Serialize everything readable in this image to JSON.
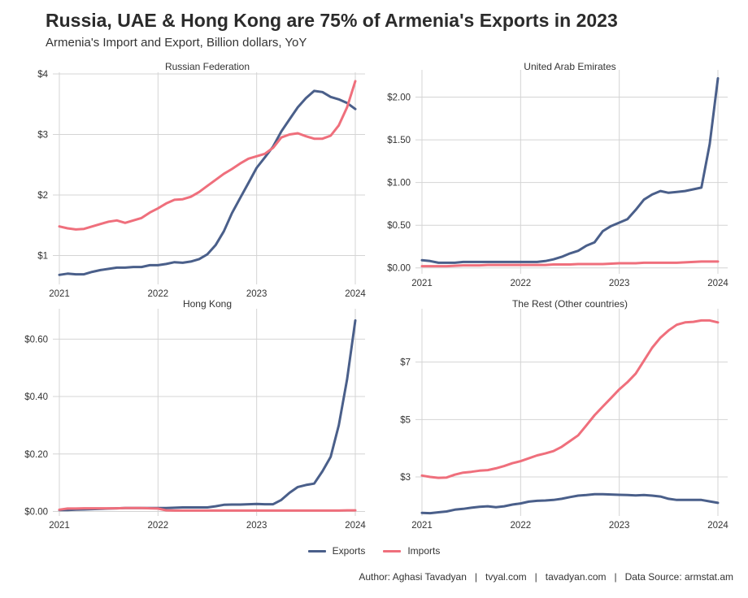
{
  "title": "Russia, UAE & Hong Kong are 75% of Armenia's Exports in 2023",
  "subtitle": "Armenia's Import and Export, Billion dollars, YoY",
  "caption": "Author: Aghasi Tavadyan   |   tvyal.com   |   tavadyan.com   |   Data Source: armstat.am",
  "colors": {
    "exports": "#4a5f8a",
    "imports": "#ef6f7c",
    "grid": "#d4d4d4"
  },
  "legend": [
    {
      "key": "exports",
      "label": "Exports"
    },
    {
      "key": "imports",
      "label": "Imports"
    }
  ],
  "chart_data": [
    {
      "type": "line",
      "title": "Russian Federation",
      "x_ticks": [
        2021,
        2022,
        2023,
        2024
      ],
      "xlim": [
        2021,
        2024
      ],
      "ylim": [
        0.55,
        4.0
      ],
      "y_ticks": [
        1,
        2,
        3,
        4
      ],
      "y_tick_labels": [
        "$1",
        "$2",
        "$3",
        "$4"
      ],
      "grid": true,
      "series": [
        {
          "name": "Exports",
          "x": [
            2021.0,
            2021.083,
            2021.167,
            2021.25,
            2021.333,
            2021.417,
            2021.5,
            2021.583,
            2021.667,
            2021.75,
            2021.833,
            2021.917,
            2022.0,
            2022.083,
            2022.167,
            2022.25,
            2022.333,
            2022.417,
            2022.5,
            2022.583,
            2022.667,
            2022.75,
            2022.833,
            2022.917,
            2023.0,
            2023.083,
            2023.167,
            2023.25,
            2023.333,
            2023.417,
            2023.5,
            2023.583,
            2023.667,
            2023.75,
            2023.833,
            2023.917,
            2024.0
          ],
          "y": [
            0.68,
            0.7,
            0.69,
            0.69,
            0.73,
            0.76,
            0.78,
            0.8,
            0.8,
            0.81,
            0.81,
            0.84,
            0.84,
            0.86,
            0.89,
            0.88,
            0.9,
            0.94,
            1.02,
            1.17,
            1.4,
            1.7,
            1.95,
            2.2,
            2.45,
            2.62,
            2.8,
            3.05,
            3.25,
            3.45,
            3.6,
            3.72,
            3.7,
            3.62,
            3.58,
            3.52,
            3.42
          ]
        },
        {
          "name": "Imports",
          "x": [
            2021.0,
            2021.083,
            2021.167,
            2021.25,
            2021.333,
            2021.417,
            2021.5,
            2021.583,
            2021.667,
            2021.75,
            2021.833,
            2021.917,
            2022.0,
            2022.083,
            2022.167,
            2022.25,
            2022.333,
            2022.417,
            2022.5,
            2022.583,
            2022.667,
            2022.75,
            2022.833,
            2022.917,
            2023.0,
            2023.083,
            2023.167,
            2023.25,
            2023.333,
            2023.417,
            2023.5,
            2023.583,
            2023.667,
            2023.75,
            2023.833,
            2023.917,
            2024.0
          ],
          "y": [
            1.48,
            1.45,
            1.43,
            1.44,
            1.48,
            1.52,
            1.56,
            1.58,
            1.54,
            1.58,
            1.62,
            1.71,
            1.78,
            1.86,
            1.92,
            1.93,
            1.97,
            2.05,
            2.15,
            2.25,
            2.35,
            2.43,
            2.52,
            2.6,
            2.64,
            2.68,
            2.78,
            2.95,
            3.0,
            3.02,
            2.97,
            2.93,
            2.93,
            2.98,
            3.15,
            3.45,
            3.88
          ]
        }
      ]
    },
    {
      "type": "line",
      "title": "United Arab Emirates",
      "x_ticks": [
        2021,
        2022,
        2023,
        2024
      ],
      "xlim": [
        2021,
        2024
      ],
      "ylim": [
        -0.05,
        2.3
      ],
      "y_ticks": [
        0,
        0.5,
        1.0,
        1.5,
        2.0
      ],
      "y_tick_labels": [
        "$0.00",
        "$0.50",
        "$1.00",
        "$1.50",
        "$2.00"
      ],
      "grid": true,
      "series": [
        {
          "name": "Exports",
          "x": [
            2021.0,
            2021.083,
            2021.167,
            2021.25,
            2021.333,
            2021.417,
            2021.5,
            2021.583,
            2021.667,
            2021.75,
            2021.833,
            2021.917,
            2022.0,
            2022.083,
            2022.167,
            2022.25,
            2022.333,
            2022.417,
            2022.5,
            2022.583,
            2022.667,
            2022.75,
            2022.833,
            2022.917,
            2023.0,
            2023.083,
            2023.167,
            2023.25,
            2023.333,
            2023.417,
            2023.5,
            2023.583,
            2023.667,
            2023.75,
            2023.833,
            2023.917,
            2024.0
          ],
          "y": [
            0.09,
            0.08,
            0.06,
            0.06,
            0.06,
            0.07,
            0.07,
            0.07,
            0.07,
            0.07,
            0.07,
            0.07,
            0.07,
            0.07,
            0.07,
            0.08,
            0.1,
            0.13,
            0.17,
            0.2,
            0.26,
            0.3,
            0.43,
            0.49,
            0.53,
            0.57,
            0.68,
            0.8,
            0.86,
            0.9,
            0.88,
            0.89,
            0.9,
            0.92,
            0.94,
            1.45,
            2.22
          ]
        },
        {
          "name": "Imports",
          "x": [
            2021.0,
            2021.083,
            2021.167,
            2021.25,
            2021.333,
            2021.417,
            2021.5,
            2021.583,
            2021.667,
            2021.75,
            2021.833,
            2021.917,
            2022.0,
            2022.083,
            2022.167,
            2022.25,
            2022.333,
            2022.417,
            2022.5,
            2022.583,
            2022.667,
            2022.75,
            2022.833,
            2022.917,
            2023.0,
            2023.083,
            2023.167,
            2023.25,
            2023.333,
            2023.417,
            2023.5,
            2023.583,
            2023.667,
            2023.75,
            2023.833,
            2023.917,
            2024.0
          ],
          "y": [
            0.02,
            0.02,
            0.02,
            0.02,
            0.025,
            0.03,
            0.03,
            0.03,
            0.035,
            0.035,
            0.035,
            0.035,
            0.035,
            0.035,
            0.035,
            0.035,
            0.04,
            0.04,
            0.04,
            0.045,
            0.045,
            0.045,
            0.045,
            0.05,
            0.055,
            0.055,
            0.055,
            0.06,
            0.06,
            0.06,
            0.06,
            0.06,
            0.065,
            0.07,
            0.075,
            0.075,
            0.075
          ]
        }
      ]
    },
    {
      "type": "line",
      "title": "Hong Kong",
      "x_ticks": [
        2021,
        2022,
        2023,
        2024
      ],
      "xlim": [
        2021,
        2024
      ],
      "ylim": [
        -0.01,
        0.7
      ],
      "y_ticks": [
        0,
        0.2,
        0.4,
        0.6
      ],
      "y_tick_labels": [
        "$0.00",
        "$0.20",
        "$0.40",
        "$0.60"
      ],
      "grid": true,
      "series": [
        {
          "name": "Exports",
          "x": [
            2021.0,
            2021.083,
            2021.167,
            2021.25,
            2021.333,
            2021.417,
            2021.5,
            2021.583,
            2021.667,
            2021.75,
            2021.833,
            2021.917,
            2022.0,
            2022.083,
            2022.167,
            2022.25,
            2022.333,
            2022.417,
            2022.5,
            2022.583,
            2022.667,
            2022.75,
            2022.833,
            2022.917,
            2023.0,
            2023.083,
            2023.167,
            2023.25,
            2023.333,
            2023.417,
            2023.5,
            2023.583,
            2023.667,
            2023.75,
            2023.833,
            2023.917,
            2024.0
          ],
          "y": [
            0.005,
            0.005,
            0.006,
            0.007,
            0.008,
            0.009,
            0.01,
            0.011,
            0.012,
            0.012,
            0.012,
            0.012,
            0.012,
            0.012,
            0.013,
            0.014,
            0.014,
            0.014,
            0.014,
            0.018,
            0.023,
            0.024,
            0.024,
            0.025,
            0.026,
            0.025,
            0.025,
            0.04,
            0.065,
            0.085,
            0.092,
            0.097,
            0.14,
            0.19,
            0.3,
            0.46,
            0.665
          ]
        },
        {
          "name": "Imports",
          "x": [
            2021.0,
            2021.083,
            2021.167,
            2021.25,
            2021.333,
            2021.417,
            2021.5,
            2021.583,
            2021.667,
            2021.75,
            2021.833,
            2021.917,
            2022.0,
            2022.083,
            2022.167,
            2022.25,
            2022.333,
            2022.417,
            2022.5,
            2022.583,
            2022.667,
            2022.75,
            2022.833,
            2022.917,
            2023.0,
            2023.083,
            2023.167,
            2023.25,
            2023.333,
            2023.417,
            2023.5,
            2023.583,
            2023.667,
            2023.75,
            2023.833,
            2023.917,
            2024.0
          ],
          "y": [
            0.006,
            0.01,
            0.01,
            0.011,
            0.011,
            0.011,
            0.011,
            0.011,
            0.012,
            0.012,
            0.012,
            0.011,
            0.01,
            0.004,
            0.003,
            0.003,
            0.003,
            0.003,
            0.003,
            0.003,
            0.003,
            0.003,
            0.003,
            0.003,
            0.003,
            0.003,
            0.003,
            0.003,
            0.003,
            0.003,
            0.003,
            0.003,
            0.003,
            0.003,
            0.003,
            0.004,
            0.004
          ]
        }
      ]
    },
    {
      "type": "line",
      "title": "The Rest (Other countries)",
      "x_ticks": [
        2021,
        2022,
        2023,
        2024
      ],
      "xlim": [
        2021,
        2024
      ],
      "ylim": [
        1.7,
        8.8
      ],
      "y_ticks": [
        3,
        5,
        7
      ],
      "y_tick_labels": [
        "$3",
        "$5",
        "$7"
      ],
      "grid": true,
      "series": [
        {
          "name": "Exports",
          "x": [
            2021.0,
            2021.083,
            2021.167,
            2021.25,
            2021.333,
            2021.417,
            2021.5,
            2021.583,
            2021.667,
            2021.75,
            2021.833,
            2021.917,
            2022.0,
            2022.083,
            2022.167,
            2022.25,
            2022.333,
            2022.417,
            2022.5,
            2022.583,
            2022.667,
            2022.75,
            2022.833,
            2022.917,
            2023.0,
            2023.083,
            2023.167,
            2023.25,
            2023.333,
            2023.417,
            2023.5,
            2023.583,
            2023.667,
            2023.75,
            2023.833,
            2023.917,
            2024.0
          ],
          "y": [
            1.75,
            1.74,
            1.77,
            1.8,
            1.86,
            1.89,
            1.93,
            1.96,
            1.98,
            1.95,
            1.98,
            2.04,
            2.08,
            2.14,
            2.17,
            2.18,
            2.2,
            2.24,
            2.3,
            2.35,
            2.37,
            2.4,
            2.4,
            2.39,
            2.38,
            2.37,
            2.36,
            2.37,
            2.35,
            2.32,
            2.24,
            2.2,
            2.2,
            2.2,
            2.2,
            2.15,
            2.1
          ]
        },
        {
          "name": "Imports",
          "x": [
            2021.0,
            2021.083,
            2021.167,
            2021.25,
            2021.333,
            2021.417,
            2021.5,
            2021.583,
            2021.667,
            2021.75,
            2021.833,
            2021.917,
            2022.0,
            2022.083,
            2022.167,
            2022.25,
            2022.333,
            2022.417,
            2022.5,
            2022.583,
            2022.667,
            2022.75,
            2022.833,
            2022.917,
            2023.0,
            2023.083,
            2023.167,
            2023.25,
            2023.333,
            2023.417,
            2023.5,
            2023.583,
            2023.667,
            2023.75,
            2023.833,
            2023.917,
            2024.0
          ],
          "y": [
            3.05,
            3.0,
            2.97,
            2.98,
            3.08,
            3.15,
            3.18,
            3.22,
            3.24,
            3.3,
            3.38,
            3.48,
            3.55,
            3.65,
            3.75,
            3.82,
            3.9,
            4.05,
            4.25,
            4.45,
            4.8,
            5.15,
            5.45,
            5.75,
            6.05,
            6.3,
            6.6,
            7.05,
            7.5,
            7.85,
            8.1,
            8.3,
            8.38,
            8.4,
            8.45,
            8.45,
            8.38
          ]
        }
      ]
    }
  ]
}
